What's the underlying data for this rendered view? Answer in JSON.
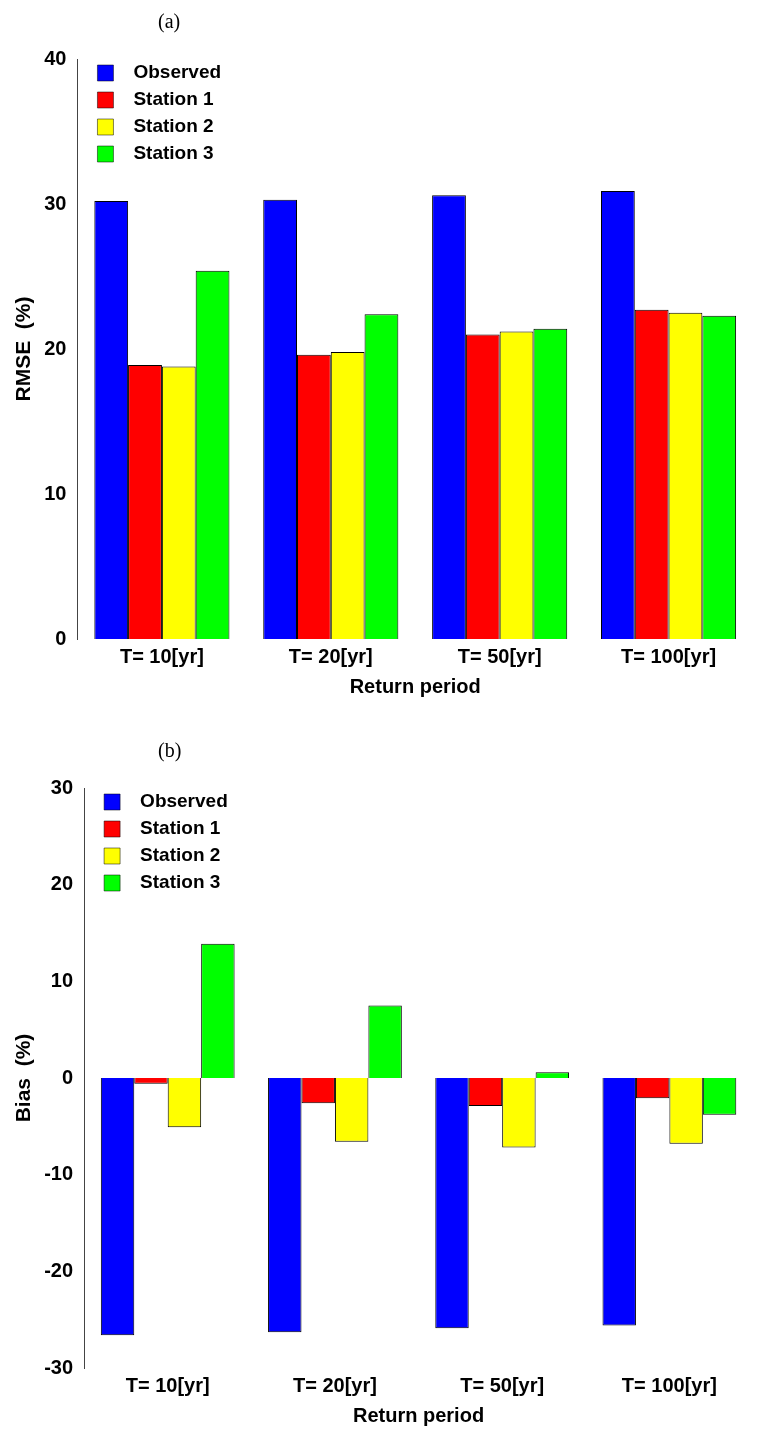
{
  "chart_data": [
    {
      "type": "bar",
      "title": "(a)",
      "xlabel": "Return period",
      "ylabel": "RMSE  (%)",
      "categories": [
        "T= 10[yr]",
        "T= 20[yr]",
        "T= 50[yr]",
        "T= 100[yr]"
      ],
      "series": [
        {
          "name": "Observed",
          "color": "#0000ff",
          "values": [
            30.2,
            30.3,
            30.6,
            30.9
          ]
        },
        {
          "name": "Station 1",
          "color": "#ff0000",
          "values": [
            18.9,
            19.6,
            21.0,
            22.7
          ]
        },
        {
          "name": "Station 2",
          "color": "#ffff00",
          "values": [
            18.8,
            19.8,
            21.2,
            22.5
          ]
        },
        {
          "name": "Station 3",
          "color": "#00ff00",
          "values": [
            25.4,
            22.4,
            21.4,
            22.3
          ]
        }
      ],
      "ylim": [
        0,
        40
      ],
      "yticks": [
        0,
        10,
        20,
        30,
        40
      ],
      "grid": false,
      "legend": "top left"
    },
    {
      "type": "bar",
      "title": "(b)",
      "xlabel": "Return period",
      "ylabel": "Bias  (%)",
      "categories": [
        "T= 10[yr]",
        "T= 20[yr]",
        "T= 50[yr]",
        "T= 100[yr]"
      ],
      "series": [
        {
          "name": "Observed",
          "color": "#0000ff",
          "values": [
            -26.6,
            -26.3,
            -25.9,
            -25.6
          ]
        },
        {
          "name": "Station 1",
          "color": "#ff0000",
          "values": [
            -0.6,
            -2.6,
            -2.9,
            -2.1
          ]
        },
        {
          "name": "Station 2",
          "color": "#ffff00",
          "values": [
            -5.1,
            -6.6,
            -7.2,
            -6.8
          ]
        },
        {
          "name": "Station 3",
          "color": "#00ff00",
          "values": [
            13.9,
            7.5,
            0.6,
            -3.8
          ]
        }
      ],
      "ylim": [
        -30,
        30
      ],
      "yticks": [
        -30,
        -20,
        -10,
        0,
        10,
        20,
        30
      ],
      "grid": false,
      "legend": "top left"
    }
  ]
}
